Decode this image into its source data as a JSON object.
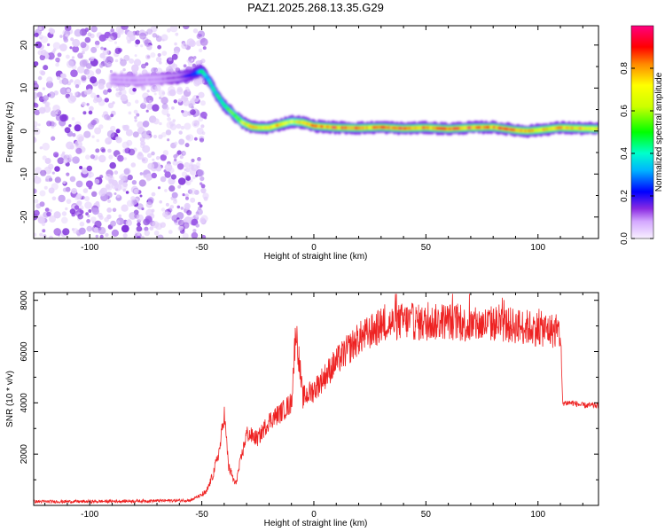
{
  "title": "PAZ1.2025.268.13.35.G29",
  "chart_data": [
    {
      "type": "heatmap",
      "xlabel": "Height of straight line (km)",
      "ylabel": "Frequency (Hz)",
      "xlim": [
        -125,
        127
      ],
      "ylim": [
        -25,
        24.5
      ],
      "xticks": [
        -100,
        -50,
        0,
        50,
        100
      ],
      "yticks": [
        -20,
        -10,
        0,
        10,
        20
      ],
      "colorbar": {
        "label": "Normalized spectral amplitude",
        "range": [
          0,
          1
        ],
        "ticks": [
          0.0,
          0.2,
          0.4,
          0.6,
          0.8
        ],
        "tick_labels": [
          "0.0",
          "0.2",
          "0.4",
          "0.6",
          "0.8"
        ]
      },
      "ridge": {
        "x": [
          -90,
          -80,
          -70,
          -60,
          -55,
          -50,
          -47,
          -44,
          -40,
          -36,
          -32,
          -28,
          -25,
          -20,
          -15,
          -10,
          -5,
          0,
          10,
          20,
          30,
          40,
          50,
          60,
          70,
          80,
          90,
          95,
          100,
          110,
          120,
          127
        ],
        "frequency": [
          12,
          11.8,
          12,
          12.5,
          13,
          14,
          12,
          9,
          6,
          4,
          2,
          1,
          0.8,
          0.8,
          1.5,
          2.2,
          2,
          1.2,
          0.8,
          0.7,
          0.9,
          0.6,
          0.8,
          0.5,
          0.8,
          0.9,
          0.2,
          0,
          0.2,
          0.8,
          0.6,
          0.5
        ],
        "amplitude": [
          0.1,
          0.1,
          0.1,
          0.15,
          0.25,
          0.45,
          0.4,
          0.45,
          0.5,
          0.6,
          0.7,
          0.85,
          0.8,
          0.8,
          0.85,
          0.7,
          0.8,
          0.9,
          0.95,
          0.9,
          0.95,
          0.95,
          0.9,
          0.95,
          0.95,
          0.9,
          0.95,
          0.9,
          0.8,
          0.85,
          0.8,
          0.8
        ]
      },
      "noise_region_x": [
        -125,
        -50
      ]
    },
    {
      "type": "line",
      "xlabel": "Height of straight line (km)",
      "ylabel": "SNR (10 * v/v)",
      "xlim": [
        -125,
        127
      ],
      "ylim": [
        0,
        8300
      ],
      "xticks": [
        -100,
        -50,
        0,
        50,
        100
      ],
      "yticks": [
        2000,
        4000,
        6000,
        8000
      ],
      "color": "#ee2222",
      "series": [
        {
          "name": "SNR",
          "x": [
            -125,
            -100,
            -70,
            -55,
            -48,
            -45,
            -42,
            -40,
            -38,
            -35,
            -30,
            -25,
            -20,
            -15,
            -10,
            -8,
            -5,
            0,
            10,
            20,
            30,
            40,
            50,
            60,
            70,
            80,
            90,
            100,
            108,
            110,
            111,
            115,
            120,
            127
          ],
          "values": [
            150,
            150,
            180,
            200,
            500,
            1200,
            2200,
            3600,
            1500,
            800,
            2800,
            2600,
            3300,
            3600,
            4000,
            6900,
            4200,
            4500,
            5600,
            6500,
            7000,
            7200,
            7100,
            7200,
            7000,
            7100,
            7000,
            6900,
            6800,
            6700,
            4000,
            4000,
            3900,
            3900
          ]
        }
      ]
    }
  ]
}
